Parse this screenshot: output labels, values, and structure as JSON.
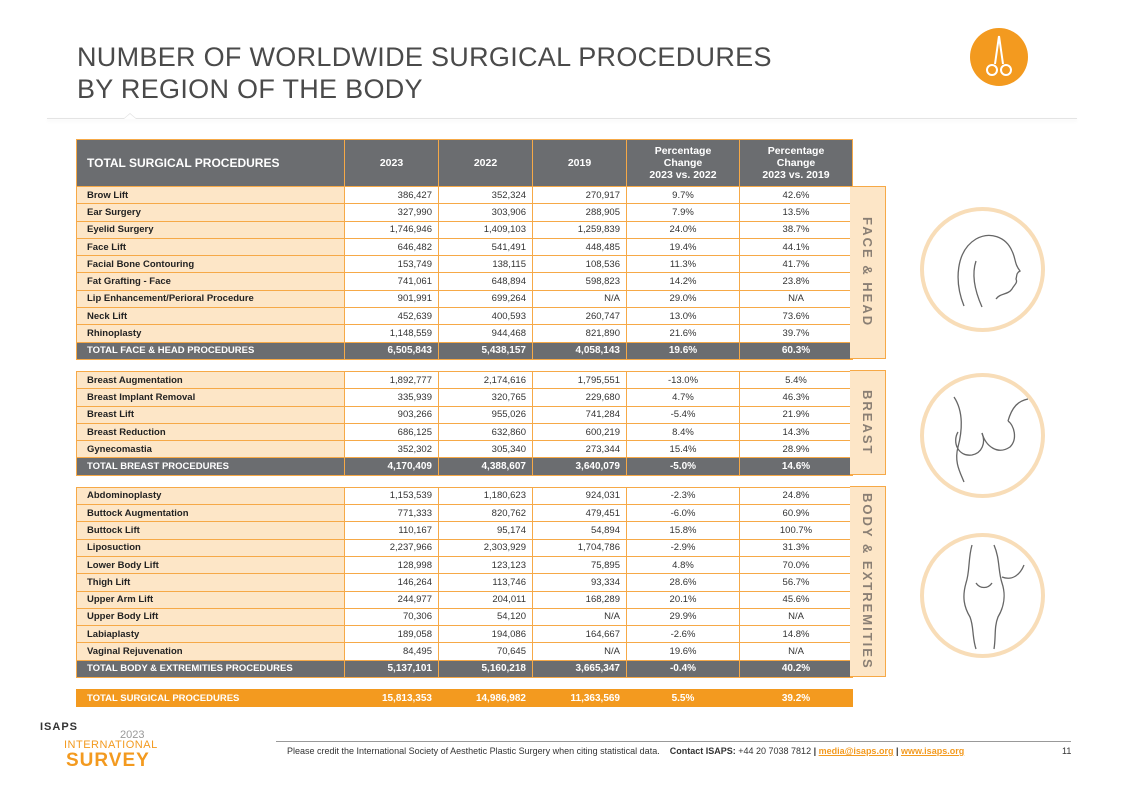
{
  "title_line1": "NUMBER OF WORLDWIDE SURGICAL PROCEDURES",
  "title_line2": "BY REGION OF THE BODY",
  "header": {
    "col0": "TOTAL SURGICAL PROCEDURES",
    "col1": "2023",
    "col2": "2022",
    "col3": "2019",
    "col4_l1": "Percentage",
    "col4_l2": "Change",
    "col4_l3": "2023 vs. 2022",
    "col5_l1": "Percentage",
    "col5_l2": "Change",
    "col5_l3": "2023 vs. 2019"
  },
  "sections": [
    {
      "region": "FACE & HEAD",
      "rows": [
        [
          "Brow Lift",
          "386,427",
          "352,324",
          "270,917",
          "9.7%",
          "42.6%"
        ],
        [
          "Ear Surgery",
          "327,990",
          "303,906",
          "288,905",
          "7.9%",
          "13.5%"
        ],
        [
          "Eyelid Surgery",
          "1,746,946",
          "1,409,103",
          "1,259,839",
          "24.0%",
          "38.7%"
        ],
        [
          "Face Lift",
          "646,482",
          "541,491",
          "448,485",
          "19.4%",
          "44.1%"
        ],
        [
          "Facial Bone Contouring",
          "153,749",
          "138,115",
          "108,536",
          "11.3%",
          "41.7%"
        ],
        [
          "Fat Grafting - Face",
          "741,061",
          "648,894",
          "598,823",
          "14.2%",
          "23.8%"
        ],
        [
          "Lip Enhancement/Perioral Procedure",
          "901,991",
          "699,264",
          "N/A",
          "29.0%",
          "N/A"
        ],
        [
          "Neck Lift",
          "452,639",
          "400,593",
          "260,747",
          "13.0%",
          "73.6%"
        ],
        [
          "Rhinoplasty",
          "1,148,559",
          "944,468",
          "821,890",
          "21.6%",
          "39.7%"
        ]
      ],
      "total": [
        "TOTAL FACE & HEAD PROCEDURES",
        "6,505,843",
        "5,438,157",
        "4,058,143",
        "19.6%",
        "60.3%"
      ]
    },
    {
      "region": "BREAST",
      "rows": [
        [
          "Breast Augmentation",
          "1,892,777",
          "2,174,616",
          "1,795,551",
          "-13.0%",
          "5.4%"
        ],
        [
          "Breast Implant Removal",
          "335,939",
          "320,765",
          "229,680",
          "4.7%",
          "46.3%"
        ],
        [
          "Breast Lift",
          "903,266",
          "955,026",
          "741,284",
          "-5.4%",
          "21.9%"
        ],
        [
          "Breast Reduction",
          "686,125",
          "632,860",
          "600,219",
          "8.4%",
          "14.3%"
        ],
        [
          "Gynecomastia",
          "352,302",
          "305,340",
          "273,344",
          "15.4%",
          "28.9%"
        ]
      ],
      "total": [
        "TOTAL BREAST PROCEDURES",
        "4,170,409",
        "4,388,607",
        "3,640,079",
        "-5.0%",
        "14.6%"
      ]
    },
    {
      "region": "BODY & EXTREMITIES",
      "rows": [
        [
          "Abdominoplasty",
          "1,153,539",
          "1,180,623",
          "924,031",
          "-2.3%",
          "24.8%"
        ],
        [
          "Buttock Augmentation",
          "771,333",
          "820,762",
          "479,451",
          "-6.0%",
          "60.9%"
        ],
        [
          "Buttock Lift",
          "110,167",
          "95,174",
          "54,894",
          "15.8%",
          "100.7%"
        ],
        [
          "Liposuction",
          "2,237,966",
          "2,303,929",
          "1,704,786",
          "-2.9%",
          "31.3%"
        ],
        [
          "Lower Body Lift",
          "128,998",
          "123,123",
          "75,895",
          "4.8%",
          "70.0%"
        ],
        [
          "Thigh Lift",
          "146,264",
          "113,746",
          "93,334",
          "28.6%",
          "56.7%"
        ],
        [
          "Upper Arm Lift",
          "244,977",
          "204,011",
          "168,289",
          "20.1%",
          "45.6%"
        ],
        [
          "Upper Body Lift",
          "70,306",
          "54,120",
          "N/A",
          "29.9%",
          "N/A"
        ],
        [
          "Labiaplasty",
          "189,058",
          "194,086",
          "164,667",
          "-2.6%",
          "14.8%"
        ],
        [
          "Vaginal Rejuvenation",
          "84,495",
          "70,645",
          "N/A",
          "19.6%",
          "N/A"
        ]
      ],
      "total": [
        "TOTAL BODY & EXTREMITIES PROCEDURES",
        "5,137,101",
        "5,160,218",
        "3,665,347",
        "-0.4%",
        "40.2%"
      ]
    }
  ],
  "grand_total": [
    "TOTAL SURGICAL PROCEDURES",
    "15,813,353",
    "14,986,982",
    "11,363,569",
    "5.5%",
    "39.2%"
  ],
  "footer": {
    "credit": "Please credit the International Society of Aesthetic Plastic Surgery when citing statistical data.",
    "contact_label": "Contact ISAPS:",
    "phone": "+44 20 7038 7812",
    "sep1": "|",
    "email": "media@isaps.org",
    "sep2": "|",
    "web": "www.isaps.org",
    "page": "11"
  },
  "logo": {
    "badge": "ISAPS",
    "year": "2023",
    "intl": "INTERNATIONAL",
    "survey": "SURVEY"
  },
  "icons": {
    "header_icon": "surgical-scissors-icon",
    "face_figure": "face-profile-icon",
    "breast_figure": "breast-figure-icon",
    "body_figure": "body-figure-icon"
  },
  "colors": {
    "accent": "#f39a1f",
    "header_gray": "#6b6d70",
    "label_bg": "#fde6c7"
  }
}
